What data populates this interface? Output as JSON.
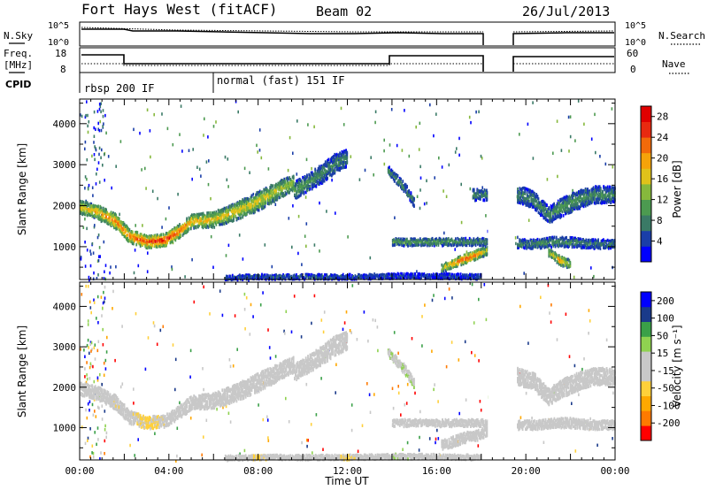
{
  "header": {
    "station": "Fort Hays West (fitACF)",
    "beam": "Beam 02",
    "date": "26/Jul/2013"
  },
  "left_labels": {
    "nsky": "N.Sky",
    "freq_line1": "Freq.",
    "freq_line2": "[MHz]",
    "cpid": "CPID"
  },
  "right_labels": {
    "nsearch": "N.Search",
    "nave": "Nave"
  },
  "cpid_segments": [
    {
      "label": "rbsp 200 IF",
      "start_hour": 0
    },
    {
      "label": "normal (fast) 151 IF",
      "start_hour": 6
    }
  ],
  "noise_axis": {
    "left_ticks": [
      "10^5",
      "10^0"
    ],
    "right_ticks": [
      "10^5",
      "10^0"
    ]
  },
  "freq_axis": {
    "left_ticks": [
      "18",
      "8"
    ],
    "right_ticks": [
      "60",
      "0"
    ]
  },
  "colors": {
    "power_scale": [
      "#0000ff",
      "#1a3ea8",
      "#3a7a66",
      "#4c9a50",
      "#86b83c",
      "#e0c21a",
      "#f5a30a",
      "#f26a0a",
      "#e82a10",
      "#e00000"
    ],
    "velocity_scale": [
      "#ff0000",
      "#ff7a00",
      "#ffa800",
      "#ffd03a",
      "#c8c8c8",
      "#c8c8c8",
      "#8fd250",
      "#3aa048",
      "#1a3a8a",
      "#0000ff"
    ]
  },
  "chart_data": [
    {
      "type": "heatmap",
      "name": "power",
      "ylabel": "Slant Range [km]",
      "y_ticks": [
        1000,
        2000,
        3000,
        4000
      ],
      "ylim": [
        200,
        4600
      ],
      "xlim": [
        0,
        24
      ],
      "colorbar": {
        "label": "Power [dB]",
        "ticks": [
          "4",
          "8",
          "12",
          "16",
          "20",
          "24",
          "28"
        ],
        "range": [
          0,
          30
        ]
      },
      "bands": [
        {
          "x": [
            0,
            0.8,
            1.6,
            2.2,
            3.0,
            3.8,
            4.4,
            5.0,
            6.0,
            7.0,
            8.0,
            9.0,
            9.6
          ],
          "y": [
            2000,
            1880,
            1650,
            1300,
            1150,
            1200,
            1400,
            1650,
            1700,
            1900,
            2150,
            2450,
            2600
          ],
          "w": [
            320,
            320,
            360,
            320,
            300,
            300,
            320,
            340,
            380,
            420,
            460,
            420,
            380
          ],
          "v": [
            18,
            20,
            23,
            22,
            26,
            28,
            24,
            20,
            18,
            17,
            17,
            15,
            14
          ]
        },
        {
          "x": [
            9.6,
            10.2,
            10.8,
            11.4,
            12.0
          ],
          "y": [
            2400,
            2600,
            2800,
            3050,
            3200
          ],
          "w": [
            420,
            420,
            460,
            480,
            420
          ],
          "v": [
            11,
            10,
            9,
            8,
            8
          ]
        },
        {
          "x": [
            14.0,
            15.0,
            16.0,
            17.0,
            18.3
          ],
          "y": [
            1150,
            1150,
            1150,
            1150,
            1150
          ],
          "w": [
            180,
            180,
            180,
            180,
            180
          ],
          "v": [
            12,
            11,
            11,
            10,
            9
          ]
        },
        {
          "x": [
            16.2,
            16.8,
            17.3,
            17.8,
            18.3
          ],
          "y": [
            500,
            650,
            750,
            850,
            950
          ],
          "w": [
            200,
            220,
            220,
            220,
            200
          ],
          "v": [
            16,
            22,
            26,
            22,
            16
          ]
        },
        {
          "x": [
            19.6,
            20.3,
            21.0,
            21.6,
            22.2,
            23.0,
            24.0
          ],
          "y": [
            2300,
            2200,
            1800,
            2000,
            2150,
            2300,
            2300
          ],
          "w": [
            420,
            420,
            400,
            440,
            440,
            420,
            400
          ],
          "v": [
            8,
            9,
            9,
            10,
            10,
            9,
            9
          ]
        },
        {
          "x": [
            19.6,
            20.4,
            21.2,
            22.0,
            22.8,
            24.0
          ],
          "y": [
            1100,
            1100,
            1150,
            1150,
            1100,
            1100
          ],
          "w": [
            220,
            220,
            240,
            240,
            220,
            220
          ],
          "v": [
            8,
            9,
            10,
            9,
            8,
            8
          ]
        },
        {
          "x": [
            21.0,
            21.5,
            22.0
          ],
          "y": [
            900,
            700,
            600
          ],
          "w": [
            200,
            220,
            200
          ],
          "v": [
            14,
            22,
            14
          ]
        },
        {
          "x": [
            13.8,
            14.5,
            15.0
          ],
          "y": [
            2900,
            2500,
            2100
          ],
          "w": [
            200,
            240,
            240
          ],
          "v": [
            9,
            9,
            8
          ]
        },
        {
          "x": [
            17.6,
            18.3
          ],
          "y": [
            2300,
            2300
          ],
          "w": [
            280,
            280
          ],
          "v": [
            9,
            9
          ]
        },
        {
          "x": [
            6.5,
            8.0,
            10.0,
            12.0,
            14.0,
            16.0,
            18.0
          ],
          "y": [
            280,
            300,
            300,
            300,
            320,
            320,
            300
          ],
          "w": [
            120,
            120,
            120,
            120,
            120,
            120,
            120
          ],
          "v": [
            5,
            6,
            6,
            6,
            6,
            5,
            5
          ]
        }
      ]
    },
    {
      "type": "heatmap",
      "name": "velocity",
      "ylabel": "Slant Range [km]",
      "y_ticks": [
        1000,
        2000,
        3000,
        4000
      ],
      "ylim": [
        200,
        4600
      ],
      "xlim": [
        0,
        24
      ],
      "xlabel": "Time UT",
      "x_ticks": [
        "00:00",
        "04:00",
        "08:00",
        "12:00",
        "16:00",
        "20:00",
        "00:00"
      ],
      "colorbar": {
        "label": "Velocity [m s⁻¹]",
        "ticks": [
          "200",
          "100",
          "50",
          "15",
          "-15",
          "-50",
          "-100",
          "-200"
        ],
        "range": [
          -250,
          250
        ]
      },
      "bands": [
        {
          "x": [
            0,
            0.8,
            1.6,
            2.2,
            3.0,
            3.8,
            4.4,
            5.0,
            6.0,
            7.0,
            8.0,
            9.0,
            9.6
          ],
          "y": [
            2000,
            1880,
            1650,
            1300,
            1150,
            1200,
            1400,
            1650,
            1700,
            1900,
            2150,
            2450,
            2600
          ],
          "w": [
            320,
            320,
            360,
            320,
            300,
            300,
            320,
            340,
            380,
            420,
            460,
            420,
            380
          ],
          "v": [
            0,
            -20,
            -40,
            -30,
            -60,
            -40,
            0,
            -20,
            0,
            -20,
            -30,
            0,
            0
          ]
        },
        {
          "x": [
            9.6,
            10.2,
            10.8,
            11.4,
            12.0
          ],
          "y": [
            2400,
            2600,
            2800,
            3050,
            3200
          ],
          "w": [
            420,
            420,
            460,
            480,
            420
          ],
          "v": [
            30,
            0,
            0,
            -20,
            0
          ]
        },
        {
          "x": [
            14.0,
            15.0,
            16.0,
            17.0,
            18.3
          ],
          "y": [
            1150,
            1150,
            1150,
            1150,
            1150
          ],
          "w": [
            180,
            180,
            180,
            180,
            180
          ],
          "v": [
            0,
            0,
            0,
            0,
            0
          ]
        },
        {
          "x": [
            16.2,
            16.8,
            17.3,
            17.8,
            18.3
          ],
          "y": [
            600,
            700,
            800,
            850,
            950
          ],
          "w": [
            240,
            260,
            260,
            260,
            220
          ],
          "v": [
            0,
            0,
            0,
            0,
            0
          ]
        },
        {
          "x": [
            19.6,
            20.3,
            21.0,
            21.6,
            22.2,
            23.0,
            24.0
          ],
          "y": [
            2300,
            2200,
            1800,
            2000,
            2150,
            2300,
            2300
          ],
          "w": [
            420,
            420,
            400,
            440,
            440,
            420,
            400
          ],
          "v": [
            0,
            0,
            0,
            0,
            0,
            0,
            0
          ]
        },
        {
          "x": [
            19.6,
            20.4,
            21.2,
            22.0,
            22.8,
            24.0
          ],
          "y": [
            1100,
            1100,
            1150,
            1150,
            1100,
            1100
          ],
          "w": [
            220,
            220,
            240,
            240,
            220,
            220
          ],
          "v": [
            0,
            0,
            0,
            0,
            0,
            0
          ]
        },
        {
          "x": [
            13.8,
            14.5,
            15.0
          ],
          "y": [
            2900,
            2500,
            2100
          ],
          "w": [
            200,
            240,
            240
          ],
          "v": [
            40,
            40,
            40
          ]
        },
        {
          "x": [
            6.5,
            8.0,
            10.0,
            12.0,
            14.0,
            16.0,
            18.0
          ],
          "y": [
            280,
            300,
            300,
            300,
            320,
            320,
            300
          ],
          "w": [
            120,
            120,
            120,
            120,
            120,
            120,
            120
          ],
          "v": [
            40,
            -60,
            40,
            -60,
            40,
            30,
            30
          ]
        }
      ]
    }
  ]
}
